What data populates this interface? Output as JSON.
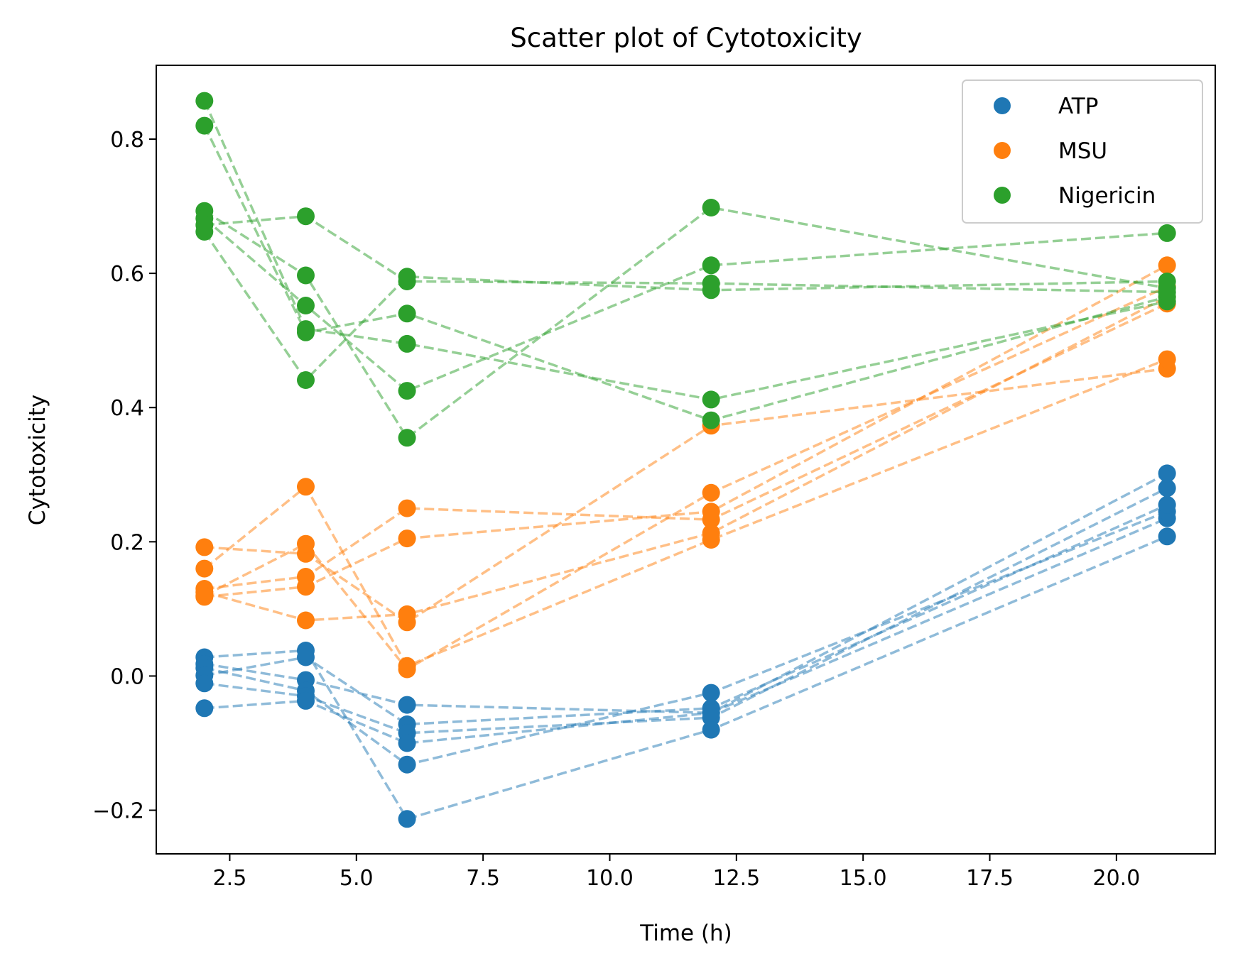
{
  "chart_data": {
    "type": "scatter",
    "title": "Scatter plot of Cytotoxicity",
    "xlabel": "Time (h)",
    "ylabel": "Cytotoxicity",
    "xlim": [
      1.05,
      21.95
    ],
    "ylim": [
      -0.265,
      0.91
    ],
    "xticks": [
      2.5,
      5.0,
      7.5,
      10.0,
      12.5,
      15.0,
      17.5,
      20.0
    ],
    "xtick_labels": [
      "2.5",
      "5.0",
      "7.5",
      "10.0",
      "12.5",
      "15.0",
      "17.5",
      "20.0"
    ],
    "yticks": [
      -0.2,
      0.0,
      0.2,
      0.4,
      0.6,
      0.8
    ],
    "ytick_labels": [
      "−0.2",
      "0.0",
      "0.2",
      "0.4",
      "0.6",
      "0.8"
    ],
    "grid": false,
    "legend_position": "top-right",
    "x": [
      2,
      4,
      6,
      12,
      21
    ],
    "series": [
      {
        "name": "ATP",
        "color": "#1f77b4",
        "replicates": [
          [
            0.028,
            0.038,
            -0.213,
            -0.08,
            0.208
          ],
          [
            0.018,
            -0.006,
            -0.043,
            -0.055,
            0.235
          ],
          [
            0.012,
            -0.022,
            -0.132,
            -0.025,
            0.245
          ],
          [
            0.001,
            0.028,
            -0.072,
            -0.048,
            0.255
          ],
          [
            -0.011,
            -0.03,
            -0.085,
            -0.062,
            0.28
          ],
          [
            -0.048,
            -0.037,
            -0.1,
            -0.055,
            0.302
          ]
        ]
      },
      {
        "name": "MSU",
        "color": "#ff7f0e",
        "replicates": [
          [
            0.192,
            0.182,
            0.08,
            0.373,
            0.458
          ],
          [
            0.16,
            0.282,
            0.015,
            0.203,
            0.472
          ],
          [
            0.13,
            0.148,
            0.25,
            0.233,
            0.555
          ],
          [
            0.125,
            0.083,
            0.092,
            0.213,
            0.565
          ],
          [
            0.12,
            0.197,
            0.01,
            0.273,
            0.58
          ],
          [
            0.118,
            0.133,
            0.205,
            0.245,
            0.612
          ]
        ]
      },
      {
        "name": "Nigericin",
        "color": "#2ca02c",
        "replicates": [
          [
            0.857,
            0.517,
            0.495,
            0.412,
            0.558
          ],
          [
            0.82,
            0.512,
            0.54,
            0.381,
            0.565
          ],
          [
            0.693,
            0.597,
            0.355,
            0.698,
            0.578
          ],
          [
            0.682,
            0.552,
            0.425,
            0.612,
            0.66
          ],
          [
            0.672,
            0.685,
            0.588,
            0.585,
            0.572
          ],
          [
            0.662,
            0.441,
            0.595,
            0.575,
            0.588
          ]
        ]
      }
    ]
  }
}
